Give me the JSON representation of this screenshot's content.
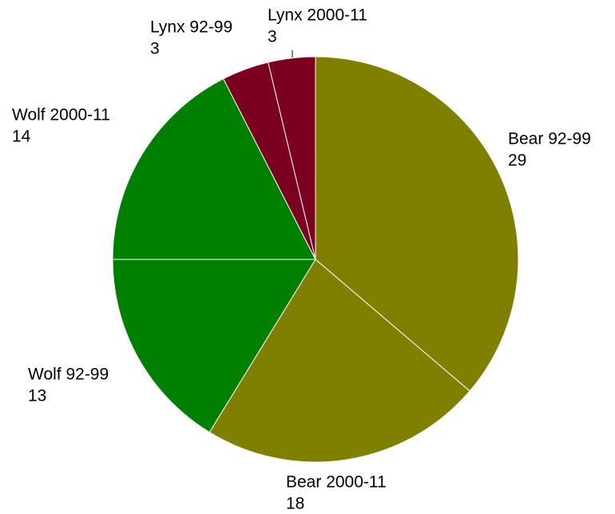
{
  "chart_data": {
    "type": "pie",
    "categories": [
      "Bear 92-99",
      "Bear 2000-11",
      "Wolf 92-99",
      "Wolf 2000-11",
      "Lynx 92-99",
      "Lynx 2000-11"
    ],
    "values": [
      29,
      18,
      13,
      14,
      3,
      3
    ],
    "colors": [
      "#808000",
      "#808000",
      "#008000",
      "#008000",
      "#7b0020",
      "#7b0020"
    ]
  }
}
